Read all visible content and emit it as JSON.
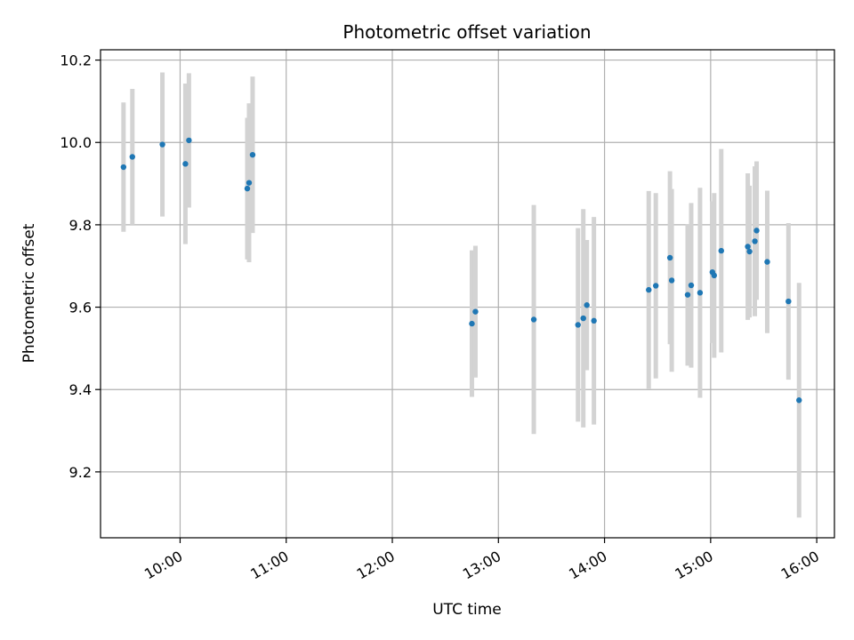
{
  "chart_data": {
    "type": "scatter",
    "title": "Photometric offset variation",
    "xlabel": "UTC time",
    "ylabel": "Photometric offset",
    "x_tick_labels": [
      "10:00",
      "11:00",
      "12:00",
      "13:00",
      "14:00",
      "15:00",
      "16:00"
    ],
    "y_tick_labels": [
      "9.2",
      "9.4",
      "9.6",
      "9.8",
      "10.0",
      "10.2"
    ],
    "xlim": [
      "09:15",
      "16:10"
    ],
    "ylim": [
      9.04,
      10.225
    ],
    "grid": true,
    "colors": {
      "point": "#1f77b4",
      "errorbar": "#d3d3d3",
      "grid": "#b0b0b0"
    },
    "points": [
      {
        "x": "09:28",
        "y": 9.94,
        "err": 0.157
      },
      {
        "x": "09:33",
        "y": 9.965,
        "err": 0.165
      },
      {
        "x": "09:50",
        "y": 9.995,
        "err": 0.175
      },
      {
        "x": "10:03",
        "y": 9.948,
        "err": 0.195
      },
      {
        "x": "10:05",
        "y": 10.005,
        "err": 0.163
      },
      {
        "x": "10:38",
        "y": 9.888,
        "err": 0.172
      },
      {
        "x": "10:39",
        "y": 9.902,
        "err": 0.193
      },
      {
        "x": "10:41",
        "y": 9.97,
        "err": 0.19
      },
      {
        "x": "12:45",
        "y": 9.56,
        "err": 0.178
      },
      {
        "x": "12:47",
        "y": 9.589,
        "err": 0.16
      },
      {
        "x": "13:20",
        "y": 9.57,
        "err": 0.278
      },
      {
        "x": "13:45",
        "y": 9.557,
        "err": 0.235
      },
      {
        "x": "13:48",
        "y": 9.573,
        "err": 0.265
      },
      {
        "x": "13:50",
        "y": 9.605,
        "err": 0.158
      },
      {
        "x": "13:54",
        "y": 9.567,
        "err": 0.252
      },
      {
        "x": "14:25",
        "y": 9.642,
        "err": 0.24
      },
      {
        "x": "14:29",
        "y": 9.652,
        "err": 0.225
      },
      {
        "x": "14:37",
        "y": 9.72,
        "err": 0.21
      },
      {
        "x": "14:38",
        "y": 9.665,
        "err": 0.222
      },
      {
        "x": "14:47",
        "y": 9.63,
        "err": 0.172
      },
      {
        "x": "14:49",
        "y": 9.653,
        "err": 0.2
      },
      {
        "x": "14:54",
        "y": 9.635,
        "err": 0.255
      },
      {
        "x": "15:01",
        "y": 9.685,
        "err": 0.172
      },
      {
        "x": "15:02",
        "y": 9.677,
        "err": 0.2
      },
      {
        "x": "15:06",
        "y": 9.737,
        "err": 0.247
      },
      {
        "x": "15:21",
        "y": 9.747,
        "err": 0.178
      },
      {
        "x": "15:22",
        "y": 9.735,
        "err": 0.16
      },
      {
        "x": "15:25",
        "y": 9.76,
        "err": 0.182
      },
      {
        "x": "15:26",
        "y": 9.786,
        "err": 0.168
      },
      {
        "x": "15:32",
        "y": 9.71,
        "err": 0.173
      },
      {
        "x": "15:44",
        "y": 9.614,
        "err": 0.19
      },
      {
        "x": "15:50",
        "y": 9.374,
        "err": 0.285
      }
    ]
  }
}
